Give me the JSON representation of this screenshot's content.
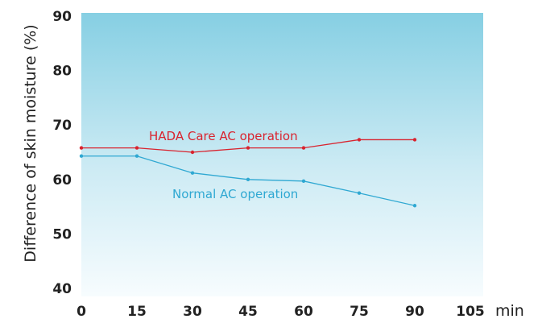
{
  "chart_data": {
    "type": "line",
    "xlabel": "",
    "x_unit": "min",
    "ylabel": "Difference of skin moisture (%)",
    "xlim": [
      0,
      105
    ],
    "ylim": [
      40,
      90
    ],
    "x_ticks": [
      "0",
      "15",
      "30",
      "45",
      "60",
      "75",
      "90",
      "105"
    ],
    "y_ticks": [
      "40",
      "50",
      "60",
      "70",
      "80",
      "90"
    ],
    "grid": false,
    "background": "light blue gradient",
    "series": [
      {
        "name": "HADA Care AC operation",
        "color": "#d9232e",
        "x": [
          0,
          15,
          30,
          45,
          60,
          75,
          90
        ],
        "y": [
          65.8,
          65.8,
          65.0,
          65.8,
          65.8,
          67.3,
          67.3
        ]
      },
      {
        "name": "Normal AC operation",
        "color": "#2fa8d2",
        "x": [
          0,
          15,
          30,
          45,
          60,
          75,
          90
        ],
        "y": [
          64.3,
          64.3,
          61.2,
          60.0,
          59.7,
          57.5,
          55.2
        ]
      }
    ]
  }
}
